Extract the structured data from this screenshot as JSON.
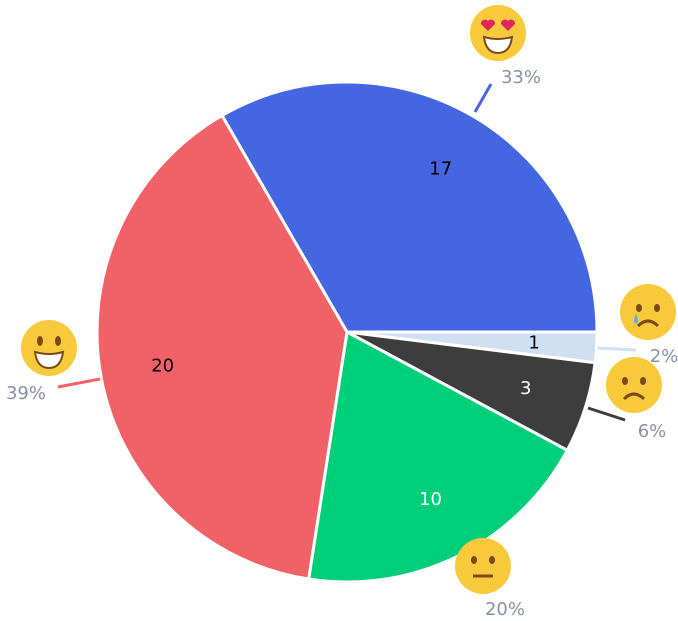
{
  "chart_data": {
    "type": "pie",
    "values": [
      17,
      1,
      3,
      10,
      20
    ],
    "percent_labels": [
      "33%",
      "2%",
      "6%",
      "20%",
      "39%"
    ],
    "colors": [
      "#4466e0",
      "#cfe0f3",
      "#3d3d3d",
      "#00cf7a",
      "#f06267"
    ],
    "label_colors": [
      "#000000",
      "#000000",
      "#ffffff",
      "#ffffff",
      "#000000"
    ]
  }
}
